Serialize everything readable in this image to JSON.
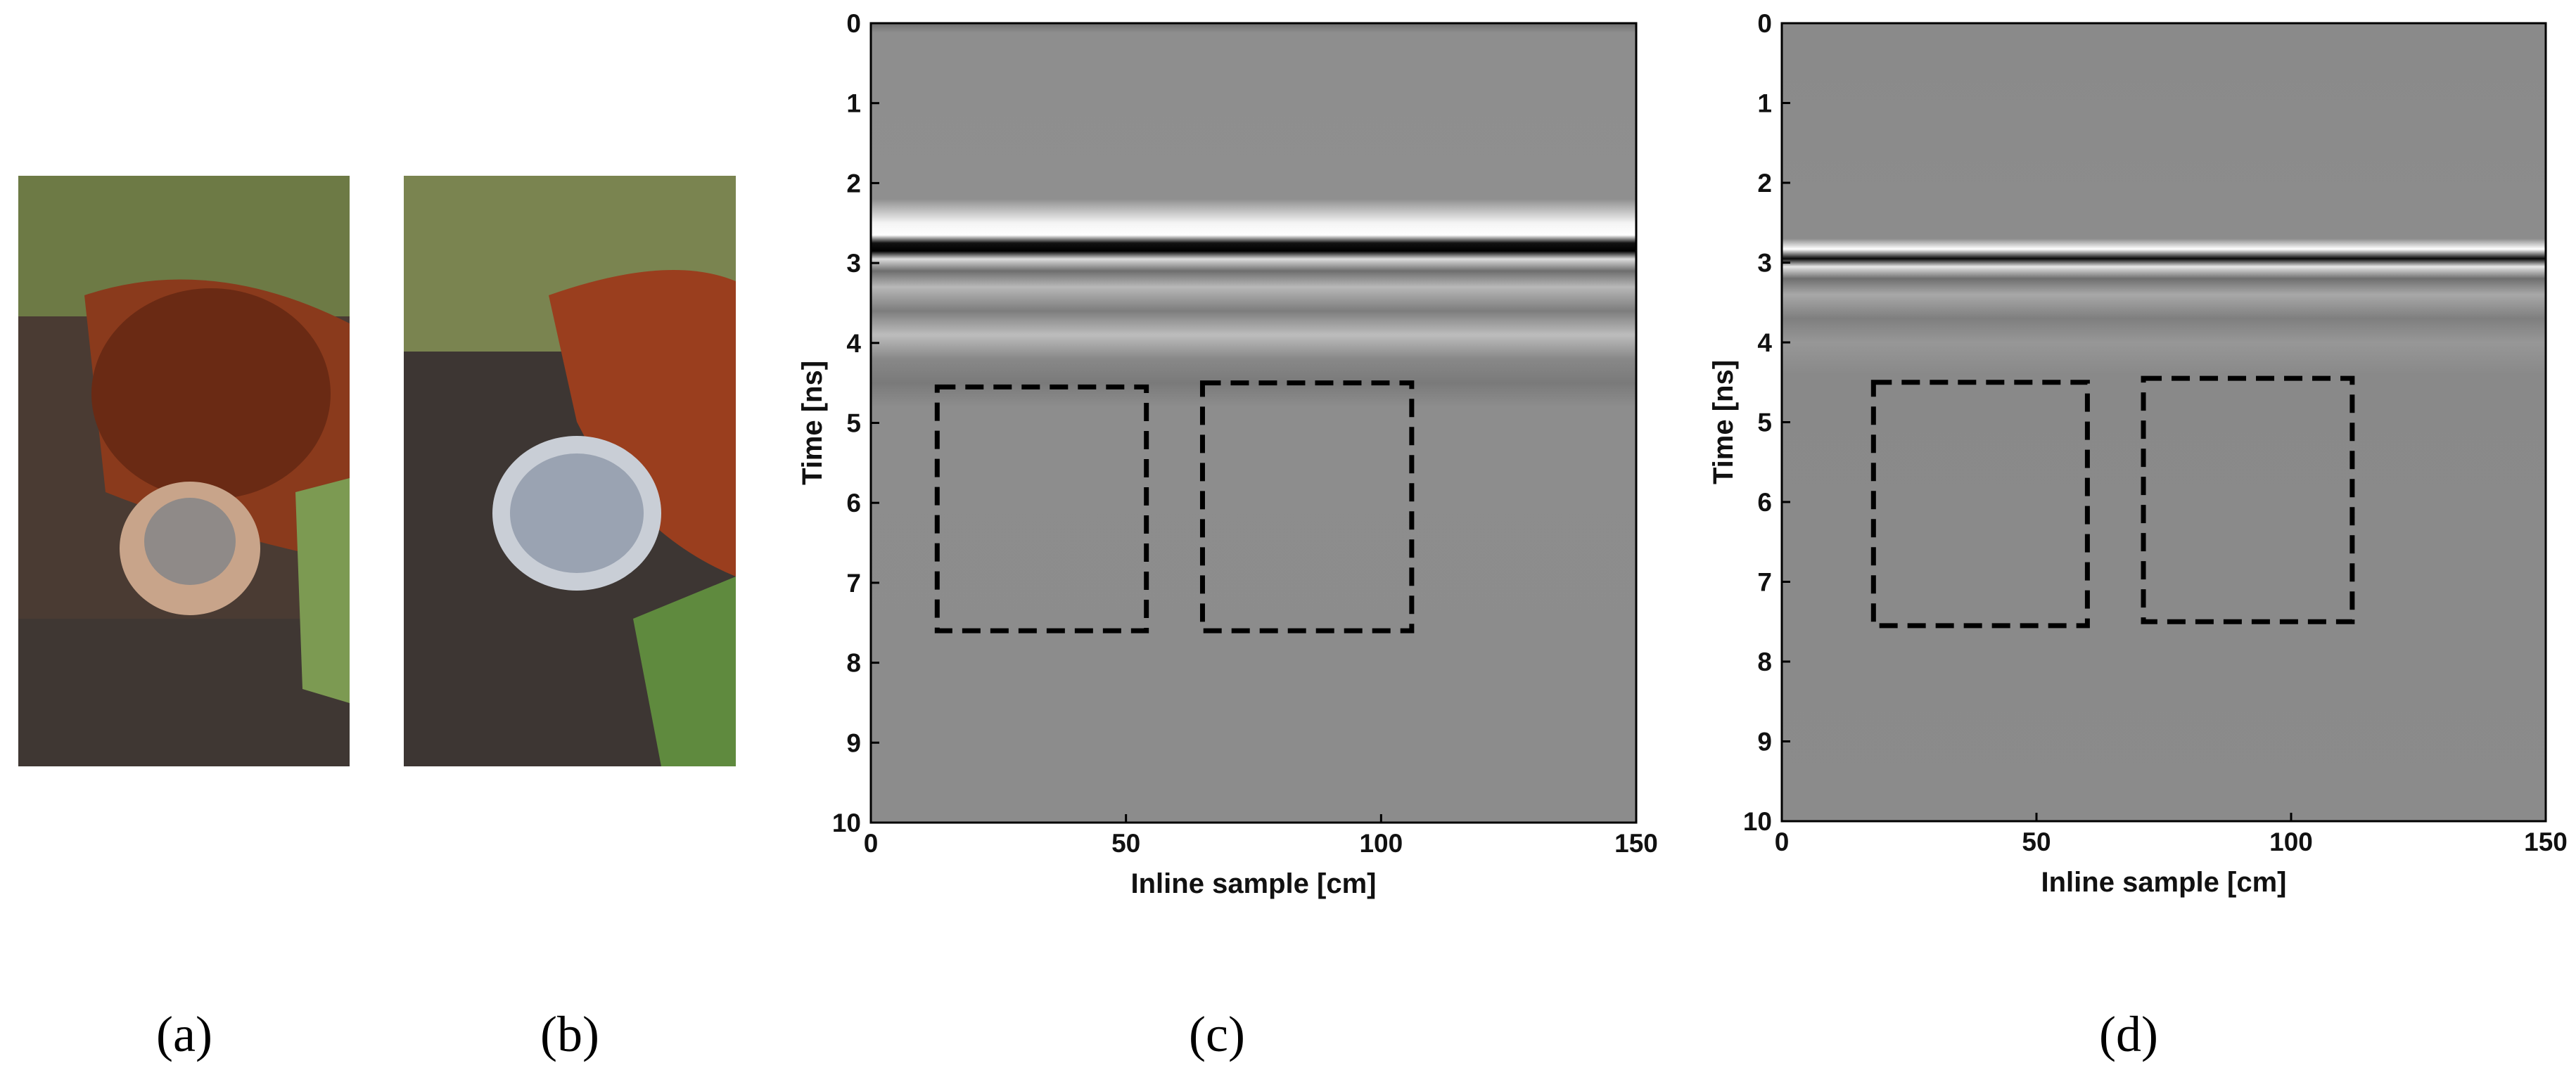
{
  "captions": [
    "(a)",
    "(b)",
    "(c)",
    "(d)"
  ],
  "chart_data": [
    {
      "type": "radargram",
      "xlabel": "Inline sample [cm]",
      "ylabel": "Time [ns]",
      "xlim": [
        0,
        150
      ],
      "ylim": [
        0,
        10
      ],
      "xticks": [
        0,
        50,
        100,
        150
      ],
      "yticks": [
        0,
        1,
        2,
        3,
        4,
        5,
        6,
        7,
        8,
        9,
        10
      ],
      "boxes": [
        {
          "x": [
            13,
            54
          ],
          "y": [
            4.55,
            7.6
          ]
        },
        {
          "x": [
            65,
            106
          ],
          "y": [
            4.5,
            7.6
          ]
        }
      ]
    },
    {
      "type": "radargram",
      "xlabel": "Inline sample [cm]",
      "ylabel": "Time [ns]",
      "xlim": [
        0,
        150
      ],
      "ylim": [
        0,
        10
      ],
      "xticks": [
        0,
        50,
        100,
        150
      ],
      "yticks": [
        0,
        1,
        2,
        3,
        4,
        5,
        6,
        7,
        8,
        9,
        10
      ],
      "boxes": [
        {
          "x": [
            18,
            60
          ],
          "y": [
            4.5,
            7.55
          ]
        },
        {
          "x": [
            71,
            112
          ],
          "y": [
            4.45,
            7.5
          ]
        }
      ]
    }
  ]
}
